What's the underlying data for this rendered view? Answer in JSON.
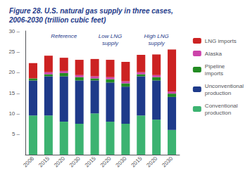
{
  "chart_data": {
    "type": "bar",
    "title": "Figure 28. U.S. natural gas supply in three cases,\n2006-2030 (trillion cubic feet)",
    "categories": [
      "2006",
      "2015",
      "2020",
      "2030",
      "2015",
      "2020",
      "2030",
      "2015",
      "2020",
      "2030"
    ],
    "series": [
      {
        "name": "Conventional\nproduction",
        "color": "#3cb371",
        "values": [
          9.5,
          9.5,
          8.0,
          7.5,
          10.0,
          8.0,
          7.5,
          9.5,
          8.5,
          6.0
        ]
      },
      {
        "name": "Unconventional\nproduction",
        "color": "#1e3a8a",
        "values": [
          8.5,
          9.5,
          11.0,
          10.5,
          8.0,
          9.5,
          9.0,
          9.5,
          9.5,
          8.0
        ]
      },
      {
        "name": "Pipeline\nimports",
        "color": "#228b22",
        "values": [
          0.5,
          0.5,
          0.8,
          0.8,
          0.5,
          0.8,
          0.8,
          0.5,
          0.8,
          0.8
        ]
      },
      {
        "name": "Alaska",
        "color": "#cc44aa",
        "values": [
          0.0,
          0.5,
          0.5,
          0.5,
          0.5,
          0.5,
          0.5,
          0.5,
          0.5,
          0.5
        ]
      },
      {
        "name": "LNG imports",
        "color": "#cc2222",
        "values": [
          3.7,
          4.0,
          3.2,
          3.7,
          4.2,
          4.2,
          4.7,
          4.2,
          5.0,
          10.2
        ]
      }
    ],
    "stacked": true,
    "ylim": [
      0,
      30
    ],
    "yticks": [
      {
        "value": 5,
        "label": "5 –"
      },
      {
        "value": 10,
        "label": "10 –"
      },
      {
        "value": 15,
        "label": "15 –"
      },
      {
        "value": 20,
        "label": "20 –"
      },
      {
        "value": 25,
        "label": "25 –"
      },
      {
        "value": 30,
        "label": "30 –"
      }
    ],
    "annotations": [
      {
        "text": "Reference",
        "x": 2
      },
      {
        "text": "Low LNG\nsupply",
        "x": 5
      },
      {
        "text": "High LNG\nsupply",
        "x": 8
      }
    ],
    "grid": false,
    "legend": "right"
  }
}
